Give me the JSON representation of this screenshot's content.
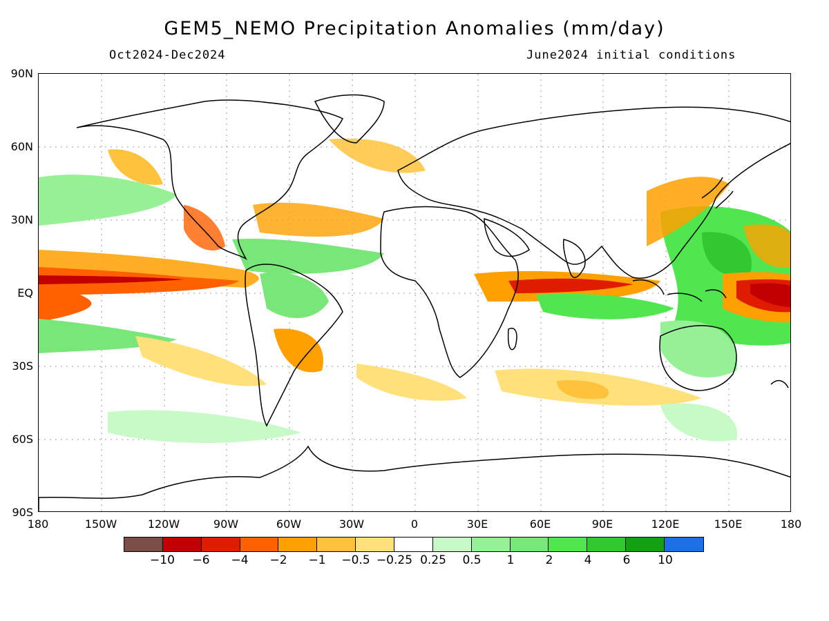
{
  "title": "GEM5_NEMO Precipitation Anomalies (mm/day)",
  "period": "Oct2024-Dec2024",
  "init": "June2024 initial conditions",
  "lat_labels": [
    "90N",
    "60N",
    "30N",
    "EQ",
    "30S",
    "60S",
    "90S"
  ],
  "lon_labels": [
    "180",
    "150W",
    "120W",
    "90W",
    "60W",
    "30W",
    "0",
    "30E",
    "60E",
    "90E",
    "120E",
    "150E",
    "180"
  ],
  "colorbar": {
    "colors": [
      "#7a4e46",
      "#c20000",
      "#e01c00",
      "#ff6000",
      "#ffa000",
      "#ffc23c",
      "#ffe07a",
      "#ffffff",
      "#c8fac8",
      "#96f096",
      "#78e678",
      "#50e650",
      "#32c832",
      "#14a014",
      "#1e6ee6"
    ],
    "labels": [
      "-10",
      "-6",
      "-4",
      "-2",
      "-1",
      "-0.5",
      "-0.25",
      "0.25",
      "0.5",
      "1",
      "2",
      "4",
      "6",
      "10"
    ]
  },
  "anomaly_regions": [
    {
      "level": "-10",
      "color": "#c20000",
      "desc": "central/west Pacific equatorial"
    },
    {
      "level": "-4",
      "color": "#ff6000",
      "desc": "equatorial Pacific tongue"
    },
    {
      "level": "-2",
      "color": "#ffa000",
      "desc": "equatorial Indian Ocean"
    },
    {
      "level": "2",
      "color": "#50e650",
      "desc": "Maritime Continent"
    },
    {
      "level": "1",
      "color": "#78e678",
      "desc": "subtropical Pacific"
    },
    {
      "level": "-0.5",
      "color": "#ffe07a",
      "desc": "southern mid-latitudes"
    }
  ]
}
